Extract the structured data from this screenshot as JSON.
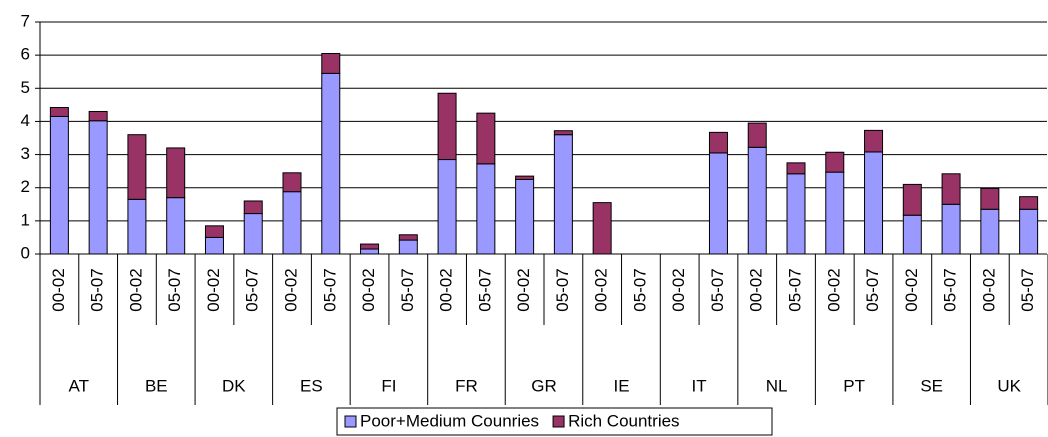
{
  "chart_data": {
    "type": "stacked_bar",
    "groups": [
      "AT",
      "BE",
      "DK",
      "ES",
      "FI",
      "FR",
      "GR",
      "IE",
      "IT",
      "NL",
      "PT",
      "SE",
      "UK"
    ],
    "categories": [
      "00-02",
      "05-07",
      "00-02",
      "05-07",
      "00-02",
      "05-07",
      "00-02",
      "05-07",
      "00-02",
      "05-07",
      "00-02",
      "05-07",
      "00-02",
      "05-07",
      "00-02",
      "05-07",
      "00-02",
      "05-07",
      "00-02",
      "05-07",
      "00-02",
      "05-07",
      "00-02",
      "05-07",
      "00-02",
      "05-07"
    ],
    "series": [
      {
        "name": "Poor+Medium Counries",
        "color": "#9999ff",
        "values": [
          4.15,
          4.02,
          1.65,
          1.7,
          0.5,
          1.22,
          1.88,
          5.45,
          0.15,
          0.42,
          2.85,
          2.72,
          2.25,
          3.6,
          0,
          null,
          null,
          3.05,
          3.22,
          2.42,
          2.47,
          3.08,
          1.17,
          1.5,
          1.35,
          1.35
        ]
      },
      {
        "name": "Rich Countries",
        "color": "#993366",
        "values": [
          0.27,
          0.28,
          1.95,
          1.5,
          0.35,
          0.38,
          0.57,
          0.6,
          0.15,
          0.16,
          2.0,
          1.53,
          0.1,
          0.12,
          1.55,
          null,
          null,
          0.62,
          0.73,
          0.33,
          0.6,
          0.65,
          0.93,
          0.92,
          0.63,
          0.38
        ]
      }
    ],
    "ylim": [
      0,
      7
    ],
    "yticks": [
      0,
      1,
      2,
      3,
      4,
      5,
      6,
      7
    ],
    "grid": true,
    "legend": "bottom"
  }
}
